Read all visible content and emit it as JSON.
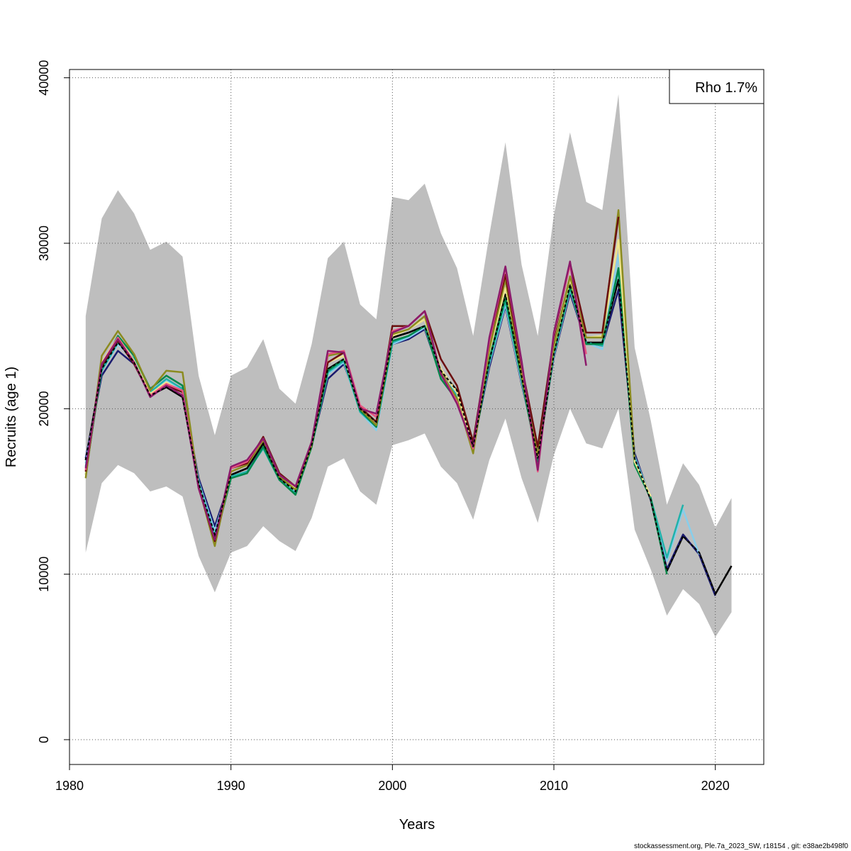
{
  "chart_data": {
    "type": "line",
    "xlabel": "Years",
    "ylabel": "Recruits (age 1)",
    "xlim": [
      1980,
      2023
    ],
    "ylim": [
      -1500,
      40500
    ],
    "x_ticks": [
      1980,
      1990,
      2000,
      2010,
      2020
    ],
    "y_ticks": [
      0,
      10000,
      20000,
      30000,
      40000
    ],
    "grid": true,
    "legend": {
      "text": "Rho 1.7%",
      "position": "top-right"
    },
    "footer": "stockassessment.org, Ple.7a_2023_SW, r18154 , git: e38ae2b498f0",
    "band_color": "#bebebe",
    "confidence_band": {
      "x": [
        1981,
        1982,
        1983,
        1984,
        1985,
        1986,
        1987,
        1988,
        1989,
        1990,
        1991,
        1992,
        1993,
        1994,
        1995,
        1996,
        1997,
        1998,
        1999,
        2000,
        2001,
        2002,
        2003,
        2004,
        2005,
        2006,
        2007,
        2008,
        2009,
        2010,
        2011,
        2012,
        2013,
        2014,
        2015,
        2016,
        2017,
        2018,
        2019,
        2020,
        2021
      ],
      "upper": [
        25600,
        31500,
        33200,
        31800,
        29600,
        30100,
        29200,
        22000,
        18400,
        22000,
        22500,
        24200,
        21200,
        20300,
        23900,
        29100,
        30100,
        26300,
        25400,
        32800,
        32600,
        33600,
        30600,
        28500,
        24400,
        30500,
        36100,
        28700,
        24400,
        31700,
        36700,
        32500,
        32000,
        39000,
        23700,
        19300,
        14200,
        16700,
        15400,
        12800,
        14600
      ],
      "lower": [
        11300,
        15500,
        16600,
        16100,
        15000,
        15300,
        14700,
        11100,
        8900,
        11300,
        11700,
        12900,
        12000,
        11400,
        13400,
        16500,
        17000,
        15000,
        14200,
        17800,
        18100,
        18500,
        16500,
        15500,
        13300,
        16900,
        19400,
        15800,
        13100,
        17200,
        20000,
        17900,
        17600,
        20000,
        12700,
        10300,
        7500,
        9100,
        8200,
        6200,
        7700
      ]
    },
    "series": [
      {
        "color": "#000000",
        "dashed": true,
        "x": [
          1981,
          1982,
          1983,
          1984,
          1985,
          1986,
          1987,
          1988,
          1989,
          1990,
          1991,
          1992,
          1993,
          1994,
          1995,
          1996,
          1997,
          1998,
          1999,
          2000,
          2001,
          2002,
          2003,
          2004,
          2005,
          2006,
          2007,
          2008,
          2009,
          2010,
          2011,
          2012,
          2013,
          2014,
          2015,
          2016,
          2017,
          2018,
          2019,
          2020,
          2021
        ],
        "values": [
          16900,
          22400,
          24000,
          22800,
          20800,
          21300,
          20700,
          15500,
          12400,
          16000,
          16400,
          17900,
          15800,
          15000,
          17800,
          22400,
          23000,
          20000,
          19200,
          24300,
          24600,
          25000,
          22300,
          21100,
          17700,
          22900,
          26900,
          22000,
          17000,
          23300,
          27500,
          24000,
          24000,
          27800,
          17000,
          14500,
          10200,
          12300,
          11300,
          8800,
          10500
        ]
      },
      {
        "color": "#000000",
        "dashed": false,
        "x": [
          1981,
          1982,
          1983,
          1984,
          1985,
          1986,
          1987,
          1988,
          1989,
          1990,
          1991,
          1992,
          1993,
          1994,
          1995,
          1996,
          1997,
          1998,
          1999,
          2000,
          2001,
          2002,
          2003,
          2004,
          2005,
          2006,
          2007,
          2008,
          2009,
          2010,
          2011,
          2012,
          2013,
          2014,
          2015,
          2016,
          2017,
          2018,
          2019,
          2020,
          2021
        ],
        "values": [
          16900,
          22400,
          24000,
          22800,
          20800,
          21300,
          20700,
          15500,
          12400,
          16000,
          16400,
          17900,
          15800,
          15000,
          17800,
          22400,
          23000,
          20000,
          19200,
          24300,
          24600,
          25000,
          22300,
          21100,
          17700,
          22900,
          26900,
          22000,
          17000,
          23300,
          27500,
          24000,
          24000,
          27800,
          17000,
          14500,
          10200,
          12300,
          11300,
          8800,
          10500
        ]
      },
      {
        "color": "#1a1a6e",
        "dashed": false,
        "x": [
          1981,
          1982,
          1983,
          1984,
          1985,
          1986,
          1987,
          1988,
          1989,
          1990,
          1991,
          1992,
          1993,
          1994,
          1995,
          1996,
          1997,
          1998,
          1999,
          2000,
          2001,
          2002,
          2003,
          2004,
          2005,
          2006,
          2007,
          2008,
          2009,
          2010,
          2011,
          2012,
          2013,
          2014,
          2015,
          2016,
          2017,
          2018,
          2019,
          2020
        ],
        "values": [
          17000,
          22000,
          23500,
          22700,
          21000,
          21500,
          21000,
          15800,
          12900,
          15800,
          16200,
          17700,
          15700,
          15000,
          17800,
          21800,
          22700,
          20000,
          19000,
          23900,
          24200,
          24800,
          22000,
          20800,
          17800,
          22500,
          26200,
          21500,
          17300,
          23100,
          27000,
          24000,
          23800,
          27200,
          17300,
          14500,
          10300,
          12400,
          11200,
          8700
        ]
      },
      {
        "color": "#87ceeb",
        "dashed": false,
        "x": [
          1981,
          1982,
          1983,
          1984,
          1985,
          1986,
          1987,
          1988,
          1989,
          1990,
          1991,
          1992,
          1993,
          1994,
          1995,
          1996,
          1997,
          1998,
          1999,
          2000,
          2001,
          2002,
          2003,
          2004,
          2005,
          2006,
          2007,
          2008,
          2009,
          2010,
          2011,
          2012,
          2013,
          2014,
          2015,
          2016,
          2017,
          2018,
          2019
        ],
        "values": [
          16700,
          22300,
          23900,
          22900,
          21100,
          21700,
          21100,
          15600,
          12600,
          15800,
          16100,
          17600,
          15700,
          15000,
          17800,
          22100,
          22800,
          19800,
          18700,
          23900,
          24300,
          24900,
          22000,
          20900,
          17800,
          22700,
          26300,
          21600,
          17200,
          23200,
          27200,
          24000,
          23600,
          29300,
          17100,
          14600,
          10800,
          13900,
          11200
        ]
      },
      {
        "color": "#20b2aa",
        "dashed": false,
        "x": [
          1981,
          1982,
          1983,
          1984,
          1985,
          1986,
          1987,
          1988,
          1989,
          1990,
          1991,
          1992,
          1993,
          1994,
          1995,
          1996,
          1997,
          1998,
          1999,
          2000,
          2001,
          2002,
          2003,
          2004,
          2005,
          2006,
          2007,
          2008,
          2009,
          2010,
          2011,
          2012,
          2013,
          2014,
          2015,
          2016,
          2017,
          2018
        ],
        "values": [
          16500,
          22300,
          24000,
          23000,
          21000,
          21800,
          21200,
          15500,
          12300,
          15900,
          16200,
          17600,
          15700,
          14900,
          17700,
          22200,
          22900,
          19800,
          18900,
          24000,
          24400,
          25000,
          22000,
          20800,
          17700,
          22800,
          26500,
          21800,
          17000,
          23300,
          27300,
          24000,
          23800,
          28400,
          17000,
          14600,
          11000,
          14200
        ]
      },
      {
        "color": "#00874a",
        "dashed": false,
        "x": [
          1981,
          1982,
          1983,
          1984,
          1985,
          1986,
          1987,
          1988,
          1989,
          1990,
          1991,
          1992,
          1993,
          1994,
          1995,
          1996,
          1997,
          1998,
          1999,
          2000,
          2001,
          2002,
          2003,
          2004,
          2005,
          2006,
          2007,
          2008,
          2009,
          2010,
          2011,
          2012,
          2013,
          2014,
          2015,
          2016,
          2017
        ],
        "values": [
          16000,
          22500,
          24400,
          23200,
          21200,
          22000,
          21400,
          15300,
          12000,
          15800,
          16100,
          17700,
          15700,
          14800,
          17700,
          22300,
          23000,
          19900,
          18900,
          24100,
          24400,
          25000,
          21800,
          20500,
          17500,
          23000,
          26700,
          21800,
          16800,
          23400,
          27400,
          23900,
          23900,
          28500,
          16600,
          14600,
          10000
        ]
      },
      {
        "color": "#f0e68c",
        "dashed": false,
        "x": [
          1981,
          1982,
          1983,
          1984,
          1985,
          1986,
          1987,
          1988,
          1989,
          1990,
          1991,
          1992,
          1993,
          1994,
          1995,
          1996,
          1997,
          1998,
          1999,
          2000,
          2001,
          2002,
          2003,
          2004,
          2005,
          2006,
          2007,
          2008,
          2009,
          2010,
          2011,
          2012,
          2013,
          2014,
          2015,
          2016
        ],
        "values": [
          16000,
          22800,
          24300,
          22900,
          20900,
          21600,
          21000,
          15300,
          12000,
          16200,
          16600,
          18100,
          16000,
          15200,
          17900,
          22800,
          23200,
          20000,
          19200,
          24400,
          24800,
          25400,
          22400,
          21000,
          17600,
          23500,
          27300,
          22400,
          17100,
          23700,
          27800,
          24300,
          24400,
          30200,
          16800,
          14700
        ]
      },
      {
        "color": "#8b8b1f",
        "dashed": false,
        "x": [
          1981,
          1982,
          1983,
          1984,
          1985,
          1986,
          1987,
          1988,
          1989,
          1990,
          1991,
          1992,
          1993,
          1994,
          1995,
          1996,
          1997,
          1998,
          1999,
          2000,
          2001,
          2002,
          2003,
          2004,
          2005,
          2006,
          2007,
          2008,
          2009,
          2010,
          2011,
          2012,
          2013,
          2014,
          2015
        ],
        "values": [
          15800,
          23200,
          24700,
          23300,
          21100,
          22300,
          22200,
          15300,
          11700,
          16200,
          16600,
          18100,
          15900,
          15100,
          17800,
          23200,
          23400,
          20000,
          19000,
          24500,
          24800,
          25600,
          22200,
          20600,
          17300,
          23600,
          27800,
          22000,
          17200,
          23800,
          28000,
          24300,
          24300,
          32000,
          16900
        ]
      },
      {
        "color": "#6b0f0f",
        "dashed": false,
        "x": [
          1981,
          1982,
          1983,
          1984,
          1985,
          1986,
          1987,
          1988,
          1989,
          1990,
          1991,
          1992,
          1993,
          1994,
          1995,
          1996,
          1997,
          1998,
          1999,
          2000,
          2001,
          2002,
          2003,
          2004,
          2005,
          2006,
          2007,
          2008,
          2009,
          2010,
          2011,
          2012,
          2013,
          2014
        ],
        "values": [
          16200,
          22600,
          24100,
          22700,
          20800,
          21400,
          21000,
          15200,
          12000,
          16400,
          16700,
          18300,
          16100,
          15300,
          18000,
          22800,
          23400,
          20100,
          19200,
          25000,
          25000,
          25900,
          23000,
          21400,
          18000,
          24100,
          28100,
          22600,
          17700,
          24300,
          28800,
          24600,
          24600,
          31600
        ]
      },
      {
        "color": "#e75480",
        "dashed": false,
        "x": [
          1981,
          1982,
          1983,
          1984,
          1985,
          1986,
          1987,
          1988,
          1989,
          1990,
          1991,
          1992,
          1993,
          1994,
          1995,
          1996,
          1997,
          1998,
          1999,
          2000,
          2001,
          2002,
          2003,
          2004,
          2005,
          2006,
          2007,
          2008,
          2009,
          2010,
          2011,
          2012
        ],
        "values": [
          16300,
          22700,
          24300,
          22800,
          20800,
          21500,
          21100,
          15200,
          12100,
          16400,
          16800,
          18200,
          16000,
          15300,
          18000,
          23300,
          23500,
          20200,
          19500,
          24700,
          25000,
          25900,
          22100,
          20400,
          17600,
          24100,
          28500,
          22800,
          16200,
          24500,
          28700,
          23300
        ]
      },
      {
        "color": "#8b1a6b",
        "dashed": false,
        "x": [
          1981,
          1982,
          1983,
          1984,
          1985,
          1986,
          1987,
          1988,
          1989,
          1990,
          1991,
          1992,
          1993,
          1994,
          1995,
          1996,
          1997,
          1998,
          1999,
          2000,
          2001,
          2002,
          2003,
          2004,
          2005,
          2006,
          2007,
          2008,
          2009,
          2010,
          2011,
          2012
        ],
        "values": [
          16400,
          22700,
          24200,
          22800,
          20700,
          21400,
          20800,
          15200,
          12100,
          16500,
          16900,
          18200,
          16000,
          15300,
          18000,
          23500,
          23400,
          20000,
          19700,
          24600,
          25000,
          25900,
          22100,
          20300,
          17700,
          24300,
          28600,
          22900,
          16300,
          24600,
          28900,
          22600
        ]
      }
    ]
  }
}
